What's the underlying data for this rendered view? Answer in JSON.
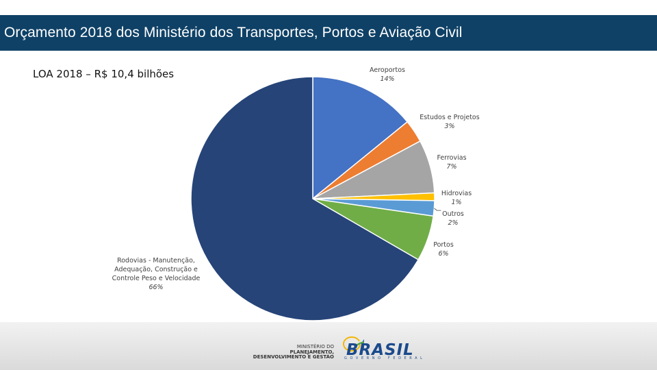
{
  "header": {
    "title": "Orçamento 2018 dos Ministério dos Transportes, Portos e Aviação Civil"
  },
  "subtitle": "LOA 2018 – R$ 10,4 bilhões",
  "chart_data": {
    "type": "pie",
    "title": "LOA 2018 – R$ 10,4 bilhões",
    "slices": [
      {
        "label": "Aeroportos",
        "value": 14,
        "pct_label": "14%",
        "color": "#4472c4"
      },
      {
        "label": "Estudos e Projetos",
        "value": 3,
        "pct_label": "3%",
        "color": "#ed7d31"
      },
      {
        "label": "Ferrovias",
        "value": 7,
        "pct_label": "7%",
        "color": "#a5a5a5"
      },
      {
        "label": "Hidrovias",
        "value": 1,
        "pct_label": "1%",
        "color": "#ffc000"
      },
      {
        "label": "Outros",
        "value": 2,
        "pct_label": "2%",
        "color": "#5b9bd5"
      },
      {
        "label": "Portos",
        "value": 6,
        "pct_label": "6%",
        "color": "#70ad47"
      },
      {
        "label": "Rodovias - Manutenção, Adequação, Construção e Controle Peso e Velocidade",
        "value": 66,
        "pct_label": "66%",
        "color": "#264478"
      }
    ]
  },
  "footer": {
    "ministry_lines": [
      "MINISTÉRIO DO",
      "PLANEJAMENTO,",
      "DESENVOLVIMENTO E GESTÃO"
    ],
    "brasil_word": "BRASIL",
    "brasil_sub": "GOVERNO FEDERAL"
  }
}
